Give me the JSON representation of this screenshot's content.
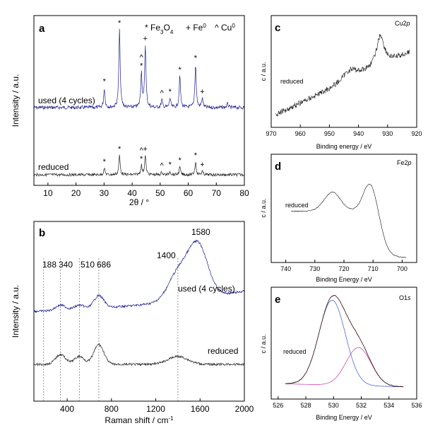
{
  "chart_data": [
    {
      "panel_label": "a",
      "type": "line",
      "xlabel": "2θ / °",
      "ylabel": "Intensity / a.u.",
      "xlim": [
        5,
        80
      ],
      "xticks": [
        "10",
        "20",
        "30",
        "40",
        "50",
        "60",
        "70",
        "80"
      ],
      "legend": [
        "* Fe",
        "3",
        "O",
        "4",
        "+ Fe",
        "0",
        "^ Cu",
        "0"
      ],
      "series": [
        {
          "name": "used (4 cycles)",
          "color": "#1f1f8f",
          "peaks": [
            [
              30.1,
              0.25
            ],
            [
              35.5,
              1.0
            ],
            [
              43.3,
              0.45
            ],
            [
              44.7,
              0.8
            ],
            [
              50.6,
              0.1
            ],
            [
              53.5,
              0.12
            ],
            [
              57.0,
              0.4
            ],
            [
              62.6,
              0.55
            ],
            [
              65.0,
              0.12
            ],
            [
              74.0,
              0.05
            ]
          ]
        },
        {
          "name": "reduced",
          "color": "#222222",
          "peaks": [
            [
              30.1,
              0.15
            ],
            [
              35.5,
              0.45
            ],
            [
              43.3,
              0.22
            ],
            [
              44.7,
              0.45
            ],
            [
              50.6,
              0.06
            ],
            [
              53.5,
              0.08
            ],
            [
              57.0,
              0.18
            ],
            [
              62.6,
              0.3
            ],
            [
              65.0,
              0.08
            ]
          ]
        }
      ],
      "annotations": [
        {
          "x": 30.1,
          "text": "*",
          "series": 0
        },
        {
          "x": 35.5,
          "text": "*",
          "series": 0
        },
        {
          "x": 43.3,
          "text": "^",
          "series": 0,
          "stack": 2
        },
        {
          "x": 43.3,
          "text": "*",
          "series": 0
        },
        {
          "x": 44.7,
          "text": "+",
          "series": 0
        },
        {
          "x": 50.6,
          "text": "^",
          "series": 0
        },
        {
          "x": 53.5,
          "text": "*",
          "series": 0
        },
        {
          "x": 57.0,
          "text": "*",
          "series": 0
        },
        {
          "x": 62.6,
          "text": "*",
          "series": 0
        },
        {
          "x": 65.0,
          "text": "+",
          "series": 0
        },
        {
          "x": 30.1,
          "text": "*",
          "series": 1
        },
        {
          "x": 35.5,
          "text": "*",
          "series": 1
        },
        {
          "x": 43.3,
          "text": "^",
          "series": 1,
          "stack": 2
        },
        {
          "x": 43.3,
          "text": "*",
          "series": 1
        },
        {
          "x": 44.7,
          "text": "+",
          "series": 1
        },
        {
          "x": 50.6,
          "text": "^",
          "series": 1
        },
        {
          "x": 53.5,
          "text": "*",
          "series": 1
        },
        {
          "x": 57.0,
          "text": "*",
          "series": 1
        },
        {
          "x": 62.6,
          "text": "*",
          "series": 1
        },
        {
          "x": 65.0,
          "text": "+",
          "series": 1
        }
      ]
    },
    {
      "panel_label": "b",
      "type": "line",
      "xlabel": "Raman shift / cm",
      "xlabel_sup": "-1",
      "ylabel": "Intensity / a.u.",
      "xlim": [
        100,
        2000
      ],
      "xticks": [
        "400",
        "800",
        "1200",
        "1600",
        "2000"
      ],
      "reference_lines": [
        188,
        340,
        510,
        686,
        1400
      ],
      "band_labels": [
        "188",
        "340",
        "510",
        "686",
        "1400",
        "1580"
      ],
      "series": [
        {
          "name": "used (4 cycles)",
          "color": "#1f1f8f",
          "bands": [
            [
              340,
              0.05
            ],
            [
              510,
              0.04
            ],
            [
              686,
              0.12
            ],
            [
              1400,
              0.25
            ],
            [
              1580,
              0.5
            ]
          ]
        },
        {
          "name": "reduced",
          "color": "#222222",
          "bands": [
            [
              340,
              0.1
            ],
            [
              510,
              0.08
            ],
            [
              686,
              0.2
            ],
            [
              1400,
              0.08
            ]
          ]
        }
      ]
    },
    {
      "panel_label": "c",
      "type": "line",
      "title": "Cu2p",
      "title_main": "Cu2",
      "title_italic": "p",
      "xlabel": "Binding energy / eV",
      "ylabel": "c / a.u.",
      "xlim": [
        970,
        920
      ],
      "xticks": [
        "970",
        "960",
        "950",
        "940",
        "930",
        "920"
      ],
      "series": [
        {
          "name": "reduced",
          "color": "#111111"
        }
      ]
    },
    {
      "panel_label": "d",
      "type": "line",
      "title": "Fe2p",
      "title_main": "Fe2",
      "title_italic": "p",
      "xlabel": "Binding Energy / eV",
      "ylabel": "c / a.u.",
      "xlim": [
        745,
        695
      ],
      "xticks": [
        "740",
        "730",
        "720",
        "710",
        "700"
      ],
      "series": [
        {
          "name": "reduced",
          "color": "#111111"
        }
      ]
    },
    {
      "panel_label": "e",
      "type": "line",
      "title": "O1s",
      "title_main": "O1",
      "title_italic": "s",
      "xlabel": "Binding Energy / eV",
      "ylabel": "c / a.u.",
      "xlim": [
        525.5,
        536
      ],
      "xticks": [
        "526",
        "528",
        "530",
        "532",
        "534",
        "536"
      ],
      "series": [
        {
          "name": "reduced",
          "color": "#111111"
        },
        {
          "color": "#3355cc",
          "peak": 529.9
        },
        {
          "color": "#cc33aa",
          "peak": 531.8
        },
        {
          "color": "#cc3333"
        }
      ]
    }
  ]
}
